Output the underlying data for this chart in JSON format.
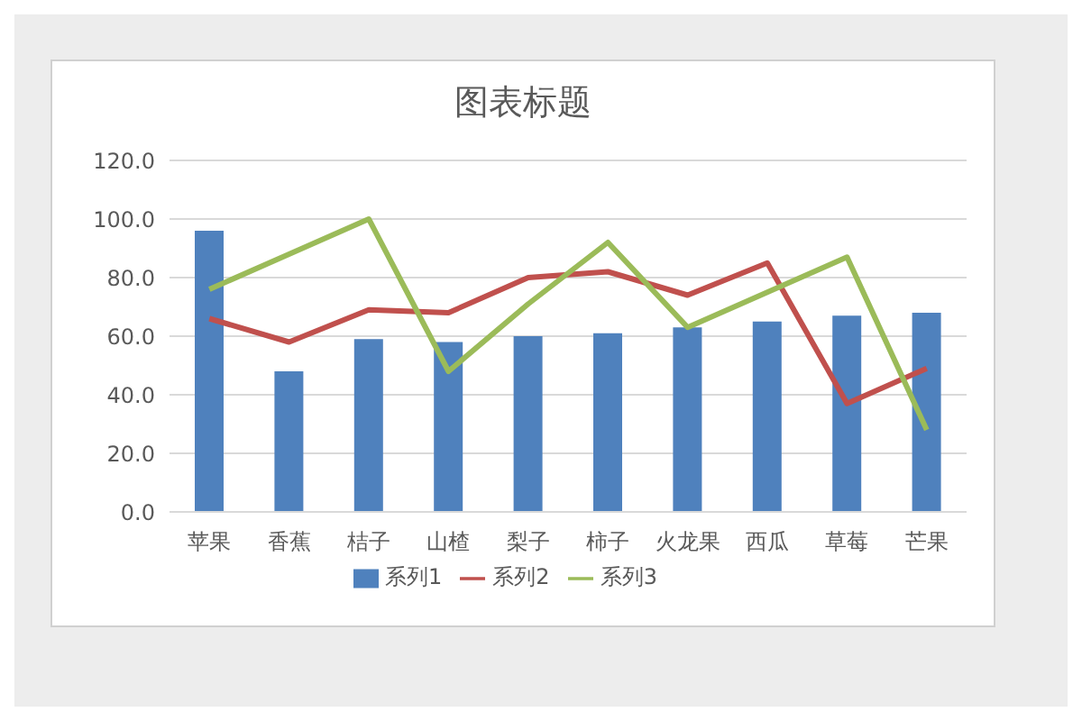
{
  "chart_data": {
    "type": "bar",
    "title": "图表标题",
    "categories": [
      "苹果",
      "香蕉",
      "桔子",
      "山楂",
      "梨子",
      "柿子",
      "火龙果",
      "西瓜",
      "草莓",
      "芒果"
    ],
    "series": [
      {
        "name": "系列1",
        "color": "#4f81bd",
        "values": [
          96,
          48,
          59,
          58,
          60,
          61,
          63,
          65,
          67,
          68
        ]
      },
      {
        "name": "系列2",
        "type": "line",
        "color": "#c0504d",
        "values": [
          66,
          58,
          69,
          68,
          80,
          82,
          74,
          85,
          37,
          49
        ]
      },
      {
        "name": "系列3",
        "type": "line",
        "color": "#9bbb59",
        "values": [
          76,
          88,
          100,
          48,
          71,
          92,
          63,
          75,
          87,
          28
        ]
      }
    ],
    "ylim": [
      0,
      120
    ],
    "yticks": [
      {
        "value": 0,
        "label": "0.0"
      },
      {
        "value": 20,
        "label": "20.0"
      },
      {
        "value": 40,
        "label": "40.0"
      },
      {
        "value": 60,
        "label": "60.0"
      },
      {
        "value": 80,
        "label": "80.0"
      },
      {
        "value": 100,
        "label": "100.0"
      },
      {
        "value": 120,
        "label": "120.0"
      }
    ],
    "grid": "y",
    "legend": "bottom",
    "marker": "none",
    "line_style": "solid"
  }
}
